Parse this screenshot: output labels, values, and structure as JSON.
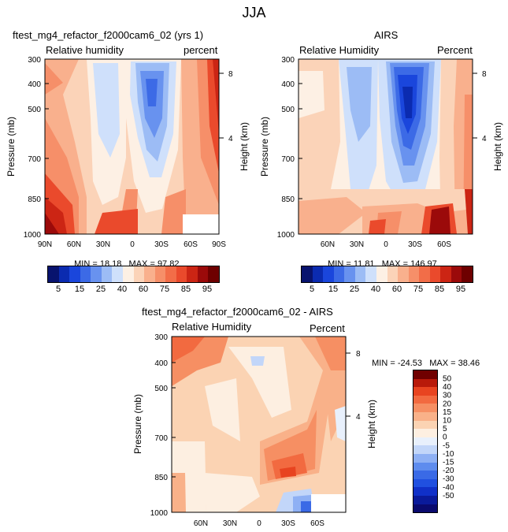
{
  "page": {
    "title": "JJA"
  },
  "colors": {
    "rh_scale": [
      "#08136e",
      "#0b2bb0",
      "#1a46dc",
      "#3c6ae6",
      "#6892ef",
      "#9cbcf5",
      "#cfe0fb",
      "#fdf0e4",
      "#fbd3b8",
      "#f9b08d",
      "#f68f69",
      "#f26d48",
      "#ea4a2c",
      "#cc2514",
      "#9b0a0a",
      "#6e0000"
    ],
    "diff_scale": [
      "#0a0a6e",
      "#0a1a9a",
      "#1030c8",
      "#2050e0",
      "#3a6ae6",
      "#5e8cee",
      "#8eb0f4",
      "#c2d6f9",
      "#e8f0fc",
      "#fdefe1",
      "#fbd3b3",
      "#f9b189",
      "#f68f63",
      "#f26a40",
      "#e84420",
      "#b81a0a",
      "#700000"
    ]
  },
  "chart_data": [
    {
      "type": "heatmap",
      "title": "ftest_mg4_refactor_f2000cam6_02 (yrs 1)",
      "left_label": "Relative humidity",
      "right_label": "percent",
      "ylabel": "Pressure (mb)",
      "ylabel_right": "Height (km)",
      "y_ticks": [
        "300",
        "400",
        "500",
        "700",
        "850",
        "1000"
      ],
      "y_right_ticks": [
        "8",
        "4"
      ],
      "x_ticks": [
        "90N",
        "60N",
        "30N",
        "0",
        "30S",
        "60S",
        "90S"
      ],
      "min_label": "MIN =",
      "min_value": "18.18",
      "max_label": "MAX =",
      "max_value": "97.82",
      "colorbar_labels": [
        "5",
        "15",
        "25",
        "40",
        "60",
        "75",
        "85",
        "95"
      ]
    },
    {
      "type": "heatmap",
      "title": "AIRS",
      "left_label": "Relative Humidity",
      "right_label": "Percent",
      "ylabel": "Pressure (mb)",
      "ylabel_right": "Height (km)",
      "y_ticks": [
        "300",
        "400",
        "500",
        "700",
        "850",
        "1000"
      ],
      "y_right_ticks": [
        "8",
        "4"
      ],
      "x_ticks": [
        "60N",
        "30N",
        "0",
        "30S",
        "60S"
      ],
      "min_label": "MIN =",
      "min_value": "11.81",
      "max_label": "MAX =",
      "max_value": "146.97",
      "colorbar_labels": [
        "5",
        "15",
        "25",
        "40",
        "60",
        "75",
        "85",
        "95"
      ]
    },
    {
      "type": "heatmap",
      "title": "ftest_mg4_refactor_f2000cam6_02 - AIRS",
      "left_label": "Relative Humidity",
      "right_label": "Percent",
      "ylabel": "Pressure (mb)",
      "ylabel_right": "Height (km)",
      "y_ticks": [
        "300",
        "400",
        "500",
        "700",
        "850",
        "1000"
      ],
      "y_right_ticks": [
        "8",
        "4"
      ],
      "x_ticks": [
        "60N",
        "30N",
        "0",
        "30S",
        "60S"
      ],
      "min_label": "MIN =",
      "min_value": "-24.53",
      "max_label": "MAX =",
      "max_value": "38.46",
      "colorbar_labels": [
        "50",
        "40",
        "30",
        "20",
        "15",
        "10",
        "5",
        "0",
        "-5",
        "-10",
        "-15",
        "-20",
        "-30",
        "-40",
        "-50"
      ]
    }
  ]
}
